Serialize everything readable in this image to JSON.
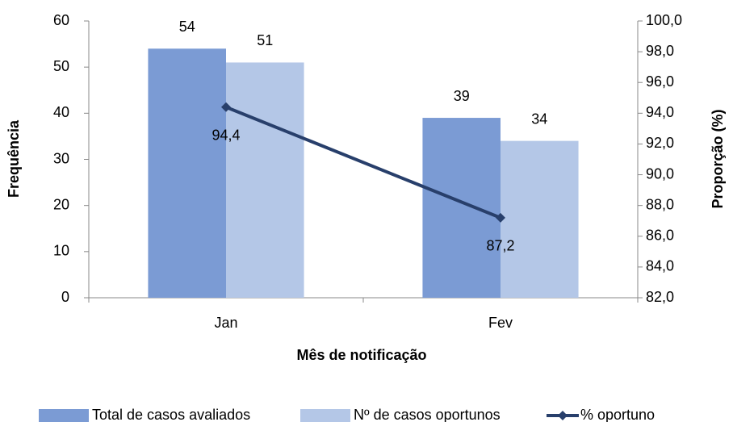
{
  "chart_data": {
    "type": "bar_line",
    "categories": [
      "Jan",
      "Fev"
    ],
    "x_label": "Mês de notificação",
    "y_label": "Frequência",
    "y2_label": "Proporção (%)",
    "ylim": [
      0,
      60
    ],
    "yticks": [
      0,
      10,
      20,
      30,
      40,
      50,
      60
    ],
    "y2lim": [
      82,
      100
    ],
    "y2ticks": [
      {
        "value": 82,
        "label": "82,0"
      },
      {
        "value": 84,
        "label": "84,0"
      },
      {
        "value": 86,
        "label": "86,0"
      },
      {
        "value": 88,
        "label": "88,0"
      },
      {
        "value": 90,
        "label": "90,0"
      },
      {
        "value": 92,
        "label": "92,0"
      },
      {
        "value": 94,
        "label": "94,0"
      },
      {
        "value": 96,
        "label": "96,0"
      },
      {
        "value": 98,
        "label": "98,0"
      },
      {
        "value": 100,
        "label": "100,0"
      }
    ],
    "series": [
      {
        "name": "Total de casos avaliados",
        "type": "bar",
        "color": "#7b9bd4",
        "values": [
          54,
          39
        ]
      },
      {
        "name": "Nº de casos oportunos",
        "type": "bar",
        "color": "#b4c7e7",
        "values": [
          51,
          34
        ]
      },
      {
        "name": "% oportuno",
        "type": "line",
        "axis": "y2",
        "color": "#283f6b",
        "values": [
          94.4,
          87.2
        ],
        "value_labels": [
          "94,4",
          "87,2"
        ]
      }
    ],
    "legend": "bottom"
  }
}
